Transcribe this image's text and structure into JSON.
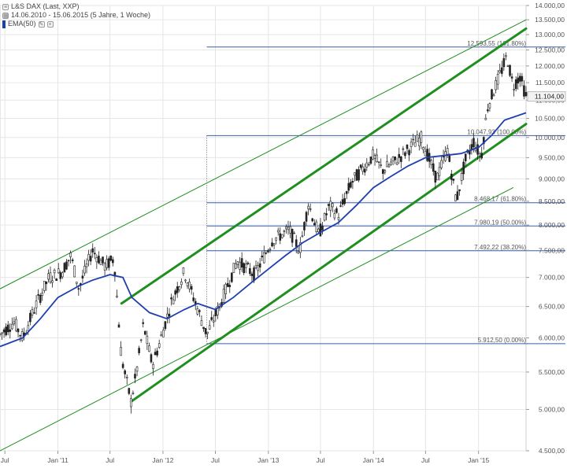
{
  "legend": {
    "instrument": "L&S DAX (Last, XXP)",
    "range": "14.06.2010 - 15.06.2015 (5 Jahre, 1 Woche)",
    "ema": "EMA(50)"
  },
  "colors": {
    "candles": "#222222",
    "ema": "#1f3fb0",
    "channel": "#1f8f1f",
    "fib": "#3b5fa8",
    "grid": "#e6e6e6",
    "axis_text": "#555555",
    "last_badge": "#f3f3f3"
  },
  "chart_data": {
    "type": "candlestick",
    "title": "L&S DAX (Last, XXP)",
    "subtitle": "14.06.2010 - 15.06.2015 (5 Jahre, 1 Woche)",
    "scale": "log",
    "ylim": [
      4500,
      14000
    ],
    "y_ticks": [
      {
        "value": 4500,
        "label": "4.500,00"
      },
      {
        "value": 5000,
        "label": "5.000,00"
      },
      {
        "value": 5500,
        "label": "5.500,00"
      },
      {
        "value": 6000,
        "label": "6.000,00"
      },
      {
        "value": 6500,
        "label": "6.500,00"
      },
      {
        "value": 7000,
        "label": "7.000,00"
      },
      {
        "value": 7500,
        "label": "7.500,00"
      },
      {
        "value": 8000,
        "label": "8.000,00"
      },
      {
        "value": 8500,
        "label": "8.500,00"
      },
      {
        "value": 9000,
        "label": "9.000,00"
      },
      {
        "value": 9500,
        "label": "9.500,00"
      },
      {
        "value": 10000,
        "label": "10.000,00"
      },
      {
        "value": 10500,
        "label": "10.500,00"
      },
      {
        "value": 11000,
        "label": "11.000,00"
      },
      {
        "value": 11500,
        "label": "11.500,00"
      },
      {
        "value": 12000,
        "label": "12.000,00"
      },
      {
        "value": 12500,
        "label": "12.500,00"
      },
      {
        "value": 13000,
        "label": "13.000,00"
      },
      {
        "value": 13500,
        "label": "13.500,00"
      },
      {
        "value": 14000,
        "label": "14.000,00"
      }
    ],
    "xlim": [
      "2010-06-14",
      "2015-06-15"
    ],
    "x_ticks": [
      {
        "date": "2010-07-01",
        "label": "Jul"
      },
      {
        "date": "2011-01-01",
        "label": "Jan '11"
      },
      {
        "date": "2011-07-01",
        "label": "Jul"
      },
      {
        "date": "2012-01-01",
        "label": "Jan '12"
      },
      {
        "date": "2012-07-01",
        "label": "Jul"
      },
      {
        "date": "2013-01-01",
        "label": "Jan '13"
      },
      {
        "date": "2013-07-01",
        "label": "Jul"
      },
      {
        "date": "2014-01-01",
        "label": "Jan '14"
      },
      {
        "date": "2014-07-01",
        "label": "Jul"
      },
      {
        "date": "2015-01-01",
        "label": "Jan '15"
      }
    ],
    "last_value": 11104,
    "last_label": "11.104,00",
    "price_path": [
      [
        "2010-06-14",
        6050
      ],
      [
        "2010-08-01",
        6250
      ],
      [
        "2010-09-01",
        6000
      ],
      [
        "2010-10-15",
        6500
      ],
      [
        "2010-12-01",
        7000
      ],
      [
        "2011-01-15",
        7100
      ],
      [
        "2011-02-15",
        7400
      ],
      [
        "2011-03-15",
        6800
      ],
      [
        "2011-05-01",
        7500
      ],
      [
        "2011-06-15",
        7200
      ],
      [
        "2011-07-15",
        7350
      ],
      [
        "2011-08-10",
        5700
      ],
      [
        "2011-09-12",
        5100
      ],
      [
        "2011-10-01",
        5500
      ],
      [
        "2011-10-25",
        6200
      ],
      [
        "2011-11-25",
        5600
      ],
      [
        "2011-12-15",
        5850
      ],
      [
        "2012-02-01",
        6600
      ],
      [
        "2012-03-15",
        7100
      ],
      [
        "2012-04-20",
        6600
      ],
      [
        "2012-06-01",
        6050
      ],
      [
        "2012-07-15",
        6500
      ],
      [
        "2012-09-15",
        7300
      ],
      [
        "2012-11-15",
        7050
      ],
      [
        "2013-01-15",
        7700
      ],
      [
        "2013-03-15",
        7900
      ],
      [
        "2013-04-20",
        7500
      ],
      [
        "2013-05-20",
        8450
      ],
      [
        "2013-06-25",
        7800
      ],
      [
        "2013-08-01",
        8400
      ],
      [
        "2013-09-01",
        8200
      ],
      [
        "2013-10-15",
        8900
      ],
      [
        "2013-12-31",
        9550
      ],
      [
        "2014-02-01",
        9200
      ],
      [
        "2014-03-15",
        9400
      ],
      [
        "2014-06-15",
        10000
      ],
      [
        "2014-08-08",
        9000
      ],
      [
        "2014-09-15",
        9700
      ],
      [
        "2014-10-16",
        8500
      ],
      [
        "2014-11-15",
        9400
      ],
      [
        "2014-12-15",
        9900
      ],
      [
        "2015-01-10",
        9500
      ],
      [
        "2015-02-01",
        10800
      ],
      [
        "2015-03-01",
        11400
      ],
      [
        "2015-04-10",
        12300
      ],
      [
        "2015-05-01",
        11400
      ],
      [
        "2015-05-25",
        11700
      ],
      [
        "2015-06-15",
        11104
      ]
    ],
    "ema_path": [
      [
        "2010-06-14",
        5870
      ],
      [
        "2010-09-01",
        6000
      ],
      [
        "2010-11-01",
        6300
      ],
      [
        "2011-01-01",
        6650
      ],
      [
        "2011-03-15",
        6850
      ],
      [
        "2011-05-01",
        6950
      ],
      [
        "2011-07-01",
        7050
      ],
      [
        "2011-08-15",
        7000
      ],
      [
        "2011-09-15",
        6650
      ],
      [
        "2011-11-15",
        6400
      ],
      [
        "2012-01-15",
        6300
      ],
      [
        "2012-03-15",
        6450
      ],
      [
        "2012-05-01",
        6550
      ],
      [
        "2012-07-01",
        6450
      ],
      [
        "2012-09-01",
        6650
      ],
      [
        "2012-11-01",
        6900
      ],
      [
        "2013-01-01",
        7150
      ],
      [
        "2013-03-01",
        7400
      ],
      [
        "2013-05-01",
        7650
      ],
      [
        "2013-07-01",
        7850
      ],
      [
        "2013-09-01",
        8050
      ],
      [
        "2013-11-01",
        8400
      ],
      [
        "2014-01-01",
        8800
      ],
      [
        "2014-03-01",
        9050
      ],
      [
        "2014-05-01",
        9300
      ],
      [
        "2014-07-01",
        9500
      ],
      [
        "2014-09-01",
        9550
      ],
      [
        "2014-11-01",
        9600
      ],
      [
        "2015-01-01",
        9750
      ],
      [
        "2015-02-15",
        10050
      ],
      [
        "2015-04-01",
        10450
      ],
      [
        "2015-06-15",
        10650
      ]
    ],
    "fibonacci": [
      {
        "value": 12593.55,
        "label": "12.593,55 (161.80%)",
        "x_start": "2012-06-01"
      },
      {
        "value": 10047.93,
        "label": "10.047,93 (100.00%)",
        "x_start": "2012-06-01"
      },
      {
        "value": 8468.17,
        "label": "8.468,17 (61.80%)",
        "x_start": "2012-06-01"
      },
      {
        "value": 7980.19,
        "label": "7.980,19 (50.00%)",
        "x_start": "2012-06-01"
      },
      {
        "value": 7492.22,
        "label": "7.492,22 (38.20%)",
        "x_start": "2012-06-01"
      },
      {
        "value": 5912.5,
        "label": "5.912,50 (0.00%)",
        "x_start": "2012-06-01"
      }
    ],
    "trend_channels": [
      {
        "name": "inner-upper",
        "thick": true,
        "from": [
          "2011-08-10",
          6550
        ],
        "to": [
          "2015-06-15",
          13200
        ]
      },
      {
        "name": "inner-lower",
        "thick": true,
        "from": [
          "2011-09-12",
          5100
        ],
        "to": [
          "2015-06-15",
          10350
        ]
      },
      {
        "name": "outer-upper",
        "thick": false,
        "from": [
          "2010-06-14",
          6800
        ],
        "to": [
          "2015-06-15",
          13500
        ]
      },
      {
        "name": "outer-lower",
        "thick": false,
        "from": [
          "2010-06-14",
          4500
        ],
        "to": [
          "2015-05-01",
          8800
        ]
      }
    ]
  }
}
